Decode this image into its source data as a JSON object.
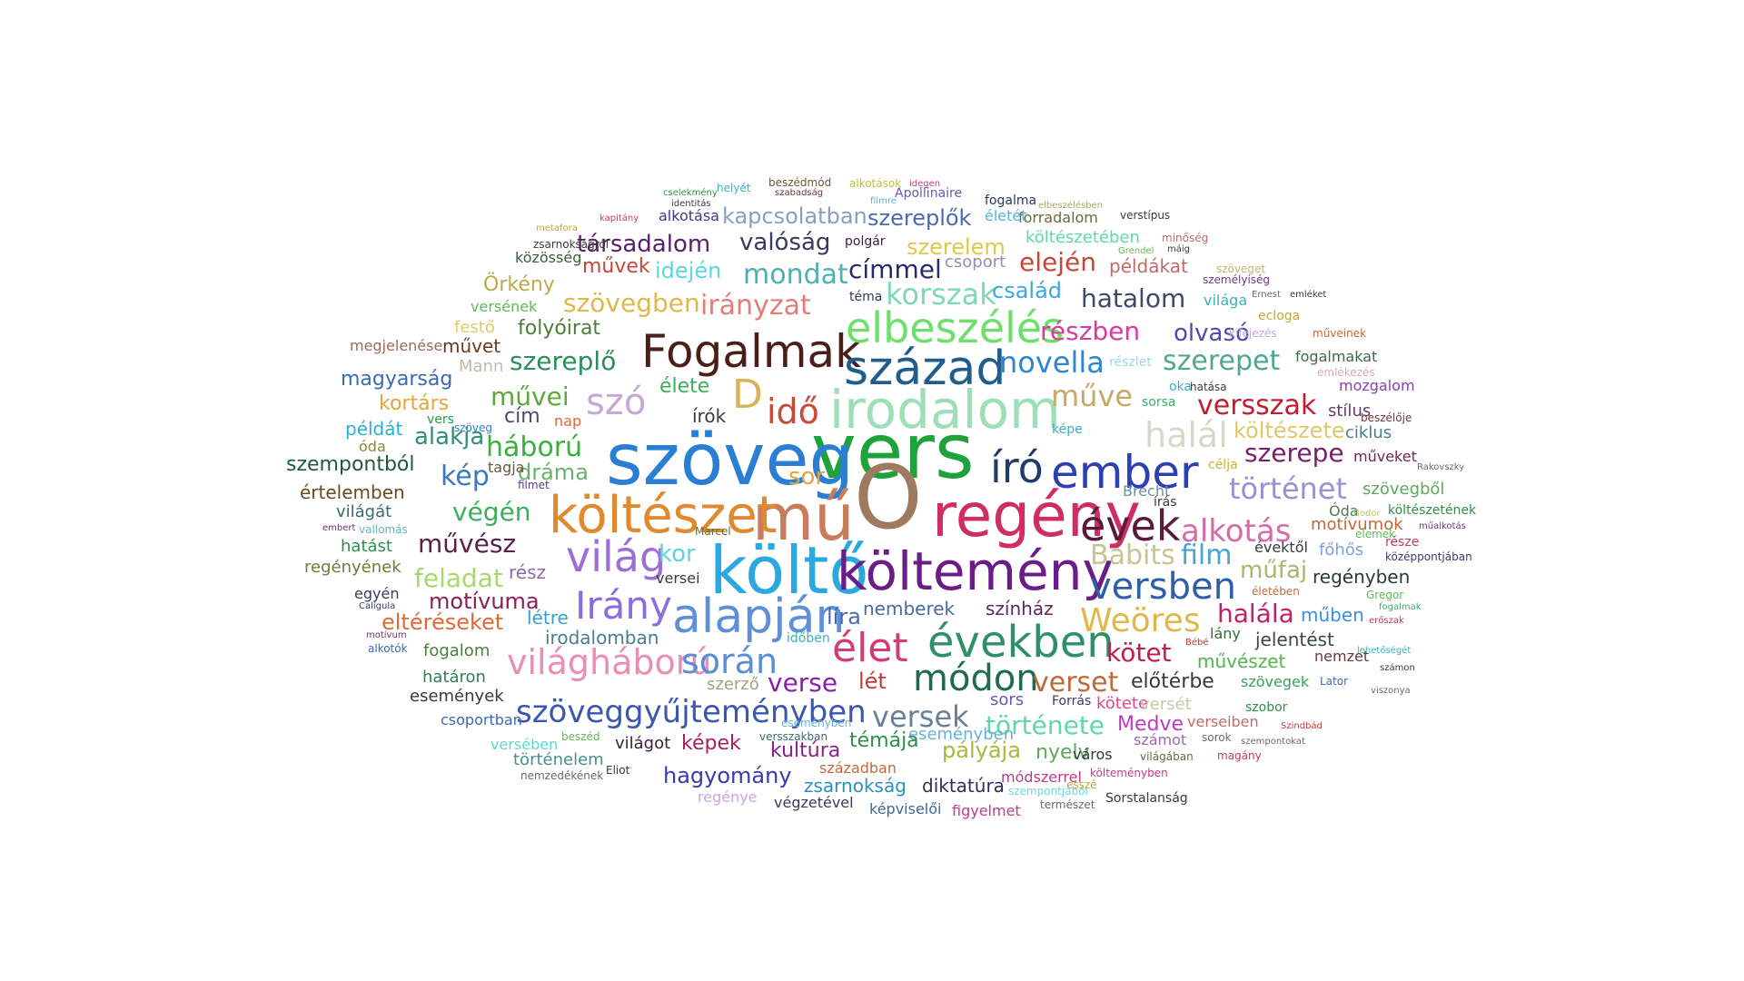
{
  "words": [
    {
      "text": "vers",
      "color": "#1fa23a"
    },
    {
      "text": "szöveg",
      "color": "#2a7fd4"
    },
    {
      "text": "O",
      "color": "#a07a5f"
    },
    {
      "text": "mű",
      "color": "#c97b5a"
    },
    {
      "text": "költő",
      "color": "#2aa8e0"
    },
    {
      "text": "regény",
      "color": "#cf2d63"
    },
    {
      "text": "költészet",
      "color": "#e0892f"
    },
    {
      "text": "költemény",
      "color": "#6a1d86"
    },
    {
      "text": "irodalom",
      "color": "#9de0b8"
    },
    {
      "text": "Fogalmak",
      "color": "#4a1f1a"
    },
    {
      "text": "század",
      "color": "#1f5d8e"
    },
    {
      "text": "elbeszélés",
      "color": "#6ee06a"
    },
    {
      "text": "ember",
      "color": "#2d3fb5"
    },
    {
      "text": "alapján",
      "color": "#5f8fd8"
    },
    {
      "text": "világ",
      "color": "#9b6ed8"
    },
    {
      "text": "évek",
      "color": "#5a1a3a"
    },
    {
      "text": "években",
      "color": "#2f8f6a"
    },
    {
      "text": "élet",
      "color": "#d43a78"
    },
    {
      "text": "író",
      "color": "#223a6a"
    },
    {
      "text": "Irány",
      "color": "#8a6ee0"
    },
    {
      "text": "módon",
      "color": "#1f6b4f"
    },
    {
      "text": "szó",
      "color": "#c6a8d8"
    },
    {
      "text": "idő",
      "color": "#c94a3a"
    },
    {
      "text": "D",
      "color": "#d8b25a"
    },
    {
      "text": "világháború",
      "color": "#e98fb5"
    },
    {
      "text": "során",
      "color": "#5a8fd8"
    },
    {
      "text": "szöveggyűjteményben",
      "color": "#3a58b0"
    },
    {
      "text": "versben",
      "color": "#2f5fa8"
    },
    {
      "text": "Weöres",
      "color": "#e0b84a"
    },
    {
      "text": "alkotás",
      "color": "#d86aa8"
    },
    {
      "text": "Babits",
      "color": "#c6c690"
    },
    {
      "text": "film",
      "color": "#4aa3d8"
    },
    {
      "text": "történet",
      "color": "#9a8fd8"
    },
    {
      "text": "halál",
      "color": "#d8d8c8"
    },
    {
      "text": "novella",
      "color": "#2f86d0"
    },
    {
      "text": "műve",
      "color": "#c6a86a"
    },
    {
      "text": "versszak",
      "color": "#c01f2f"
    },
    {
      "text": "szerepet",
      "color": "#4fa88f"
    },
    {
      "text": "részben",
      "color": "#d83a9f"
    },
    {
      "text": "hatalom",
      "color": "#3a4a6a"
    },
    {
      "text": "korszak",
      "color": "#7fd8b8"
    },
    {
      "text": "mondat",
      "color": "#4fb0b5"
    },
    {
      "text": "irányzat",
      "color": "#e07f7a"
    },
    {
      "text": "szövegben",
      "color": "#e0b84a"
    },
    {
      "text": "szereplő",
      "color": "#2a8f5a"
    },
    {
      "text": "művei",
      "color": "#5fa83a"
    },
    {
      "text": "háború",
      "color": "#3ab03a"
    },
    {
      "text": "kép",
      "color": "#3a78c0"
    },
    {
      "text": "végén",
      "color": "#3ab05a"
    },
    {
      "text": "művész",
      "color": "#5a1f4a"
    },
    {
      "text": "kor",
      "color": "#5ad8d8"
    },
    {
      "text": "feladat",
      "color": "#a8d86a"
    },
    {
      "text": "motívuma",
      "color": "#8a1f5a"
    },
    {
      "text": "eltéréseket",
      "color": "#e06a3a"
    },
    {
      "text": "alakja",
      "color": "#2f8f7a"
    },
    {
      "text": "dráma",
      "color": "#6ab06a"
    },
    {
      "text": "sor",
      "color": "#e0a83a"
    },
    {
      "text": "története",
      "color": "#5fd8a8"
    },
    {
      "text": "verset",
      "color": "#c06a3a"
    },
    {
      "text": "versek",
      "color": "#6a7f9a"
    },
    {
      "text": "verse",
      "color": "#8a1fa8"
    },
    {
      "text": "kötet",
      "color": "#c01f4a"
    },
    {
      "text": "halála",
      "color": "#c01f6a"
    },
    {
      "text": "műfaj",
      "color": "#a8b86a"
    },
    {
      "text": "költészete",
      "color": "#e0c86a"
    },
    {
      "text": "szerepe",
      "color": "#7a1f6a"
    },
    {
      "text": "olvasó",
      "color": "#4a4ab0"
    },
    {
      "text": "család",
      "color": "#3aa8d8"
    },
    {
      "text": "elején",
      "color": "#c04a3a"
    },
    {
      "text": "címmel",
      "color": "#2a2a6a"
    },
    {
      "text": "valóság",
      "color": "#3a3a5a"
    },
    {
      "text": "társadalom",
      "color": "#5a1f6a"
    },
    {
      "text": "kapcsolatban",
      "color": "#8a9fc0"
    },
    {
      "text": "szereplők",
      "color": "#4a6ab0"
    },
    {
      "text": "szerelem",
      "color": "#e0c84a"
    },
    {
      "text": "idején",
      "color": "#5ad8e0"
    },
    {
      "text": "művek",
      "color": "#c04a3a"
    },
    {
      "text": "Örkény",
      "color": "#c0a84a"
    },
    {
      "text": "folyóirat",
      "color": "#4a7f3a"
    },
    {
      "text": "magyarság",
      "color": "#3a6ab0"
    },
    {
      "text": "kortárs",
      "color": "#e0a83a"
    },
    {
      "text": "szempontból",
      "color": "#1f5a3a"
    },
    {
      "text": "értelemben",
      "color": "#6a4a1f"
    },
    {
      "text": "eseményben",
      "color": "#6ab0d8"
    },
    {
      "text": "hagyomány",
      "color": "#3a3ab0"
    },
    {
      "text": "kultúra",
      "color": "#8a1f8a"
    },
    {
      "text": "témája",
      "color": "#2f8f4a"
    },
    {
      "text": "pályája",
      "color": "#a8b83a"
    },
    {
      "text": "nyelv",
      "color": "#5fa85a"
    },
    {
      "text": "képek",
      "color": "#a81f5a"
    },
    {
      "text": "zsarnokság",
      "color": "#2a8fc0"
    },
    {
      "text": "diktatúra",
      "color": "#3a2a5a"
    },
    {
      "text": "Medve",
      "color": "#c03ac0"
    },
    {
      "text": "előtérbe",
      "color": "#3a3a3a"
    },
    {
      "text": "jelentést",
      "color": "#3a4a3a"
    },
    {
      "text": "regényben",
      "color": "#2a3a3a"
    },
    {
      "text": "műben",
      "color": "#3a8fe0"
    },
    {
      "text": "művészet",
      "color": "#5fb85a"
    },
    {
      "text": "nemberek",
      "color": "#4a6a9a"
    },
    {
      "text": "színház",
      "color": "#5a2a5a"
    },
    {
      "text": "lét",
      "color": "#c83a3a"
    },
    {
      "text": "líra",
      "color": "#4a6ab0"
    },
    {
      "text": "irodalomban",
      "color": "#4a7f8a"
    },
    {
      "text": "létre",
      "color": "#3a9fd8"
    },
    {
      "text": "rész",
      "color": "#8a6ab0"
    },
    {
      "text": "fogalom",
      "color": "#4a7f3a"
    },
    {
      "text": "határon",
      "color": "#2f7f5a"
    },
    {
      "text": "események",
      "color": "#3a3a3a"
    },
    {
      "text": "csoportban",
      "color": "#3a6ab0"
    },
    {
      "text": "versében",
      "color": "#5fd8c8"
    },
    {
      "text": "történelem",
      "color": "#4a8f8a"
    },
    {
      "text": "világot",
      "color": "#3a1f3a"
    },
    {
      "text": "sors",
      "color": "#6a5ab0"
    },
    {
      "text": "szerző",
      "color": "#a89f7a"
    },
    {
      "text": "hatást",
      "color": "#2f8f4a"
    },
    {
      "text": "regényének",
      "color": "#6a7f3a"
    },
    {
      "text": "világát",
      "color": "#3a6a6a"
    },
    {
      "text": "példát",
      "color": "#2ab0d8"
    },
    {
      "text": "egyén",
      "color": "#3a3a5a"
    },
    {
      "text": "óda",
      "color": "#8a8a3a"
    },
    {
      "text": "Mann",
      "color": "#c8b8a8"
    },
    {
      "text": "művet",
      "color": "#6a3a1f"
    },
    {
      "text": "megjelenése",
      "color": "#9a6a5a"
    },
    {
      "text": "festő",
      "color": "#e0c86a"
    },
    {
      "text": "versének",
      "color": "#5fb85a"
    },
    {
      "text": "közösség",
      "color": "#3a5a3a"
    },
    {
      "text": "cím",
      "color": "#4a4a6a"
    },
    {
      "text": "nap",
      "color": "#e06a3a"
    },
    {
      "text": "élete",
      "color": "#3ab05a"
    },
    {
      "text": "írók",
      "color": "#3a3a3a"
    },
    {
      "text": "tagja",
      "color": "#6a5a3a"
    },
    {
      "text": "Brecht",
      "color": "#6a8fa8"
    },
    {
      "text": "Óda",
      "color": "#4a7f4a"
    },
    {
      "text": "motívumok",
      "color": "#c06a3a"
    },
    {
      "text": "évektől",
      "color": "#3a3a3a"
    },
    {
      "text": "főhős",
      "color": "#7f9fd8"
    },
    {
      "text": "szövegből",
      "color": "#5fa85a"
    },
    {
      "text": "művészet",
      "color": "#5fb85a"
    },
    {
      "text": "stílus",
      "color": "#6a3a6a"
    },
    {
      "text": "ciklus",
      "color": "#4a7f8a"
    },
    {
      "text": "műveket",
      "color": "#7a1f5a"
    },
    {
      "text": "fogalmakat",
      "color": "#3a6a4a"
    },
    {
      "text": "mozgalom",
      "color": "#8a3ac0"
    },
    {
      "text": "példákat",
      "color": "#c06a6a"
    },
    {
      "text": "költészetében",
      "color": "#5fd8a8"
    },
    {
      "text": "forradalom",
      "color": "#6a6a3a"
    },
    {
      "text": "csoport",
      "color": "#9a8fa8"
    },
    {
      "text": "világa",
      "color": "#3ab0c0"
    },
    {
      "text": "Apollinaire",
      "color": "#6a5ab0"
    },
    {
      "text": "alkotása",
      "color": "#3a3a8a"
    },
    {
      "text": "polgár",
      "color": "#3a1f3a"
    },
    {
      "text": "életét",
      "color": "#5ab0d8"
    },
    {
      "text": "fogalma",
      "color": "#2a3a5a"
    },
    {
      "text": "téma",
      "color": "#2a3a5a"
    },
    {
      "text": "ecloga",
      "color": "#c0a83a"
    },
    {
      "text": "versei",
      "color": "#3a3a3a"
    },
    {
      "text": "lány",
      "color": "#3a6a3a"
    },
    {
      "text": "nemzet",
      "color": "#6a3a3a"
    },
    {
      "text": "szövegek",
      "color": "#3a9f5a"
    },
    {
      "text": "szobor",
      "color": "#2f8f4a"
    },
    {
      "text": "Forrás",
      "color": "#3a3a5a"
    },
    {
      "text": "kötete",
      "color": "#d84a8a"
    },
    {
      "text": "versét",
      "color": "#c8c8a8"
    },
    {
      "text": "verseiben",
      "color": "#c06a6a"
    },
    {
      "text": "számot",
      "color": "#9a6ab0"
    },
    {
      "text": "város",
      "color": "#2a3a3a"
    },
    {
      "text": "században",
      "color": "#c06a3a"
    },
    {
      "text": "módszerrel",
      "color": "#c03a8a"
    },
    {
      "text": "képviselői",
      "color": "#3a6a9a"
    },
    {
      "text": "figyelmet",
      "color": "#c03a8a"
    },
    {
      "text": "végzetével",
      "color": "#3a3a5a"
    },
    {
      "text": "regénye",
      "color": "#c8a8d8"
    },
    {
      "text": "Sorstalanság",
      "color": "#3a3a3a"
    },
    {
      "text": "természet",
      "color": "#6a6a6a"
    },
    {
      "text": "szempontjából",
      "color": "#6ad8e0"
    },
    {
      "text": "költeményben",
      "color": "#c03a8a"
    },
    {
      "text": "világában",
      "color": "#6a6a3a"
    },
    {
      "text": "Eliot",
      "color": "#3a3a3a"
    },
    {
      "text": "nemzedékének",
      "color": "#6a6a6a"
    },
    {
      "text": "eseményben",
      "color": "#6ab0d8"
    },
    {
      "text": "versszakban",
      "color": "#3a6a6a"
    },
    {
      "text": "beszéd",
      "color": "#5fb85a"
    },
    {
      "text": "időben",
      "color": "#3ab0c0"
    },
    {
      "text": "Marcel",
      "color": "#6a6a3a"
    },
    {
      "text": "alkotók",
      "color": "#3a6ab0"
    },
    {
      "text": "motívum",
      "color": "#6a3a6a"
    },
    {
      "text": "Calígula",
      "color": "#3a3a6a"
    },
    {
      "text": "vallomás",
      "color": "#5fb8c0"
    },
    {
      "text": "embert",
      "color": "#6a3a6a"
    },
    {
      "text": "filmet",
      "color": "#5a3a8a"
    },
    {
      "text": "zsarnokságról",
      "color": "#3a3a3a"
    },
    {
      "text": "kapitány",
      "color": "#c03a6a"
    },
    {
      "text": "metafora",
      "color": "#c0a83a"
    },
    {
      "text": "identitás",
      "color": "#3a3a3a"
    },
    {
      "text": "cselekmény",
      "color": "#2f8f4a"
    },
    {
      "text": "helyét",
      "color": "#3ab0c0"
    },
    {
      "text": "beszédmód",
      "color": "#6a5a3a"
    },
    {
      "text": "szabadság",
      "color": "#6a3a3a"
    },
    {
      "text": "alkotások",
      "color": "#c0c03a"
    },
    {
      "text": "idegen",
      "color": "#c03a8a"
    },
    {
      "text": "filmre",
      "color": "#5ab0d8"
    },
    {
      "text": "elbeszélésben",
      "color": "#a8a86a"
    },
    {
      "text": "verstípus",
      "color": "#3a3a3a"
    },
    {
      "text": "minőség",
      "color": "#c06a6a"
    },
    {
      "text": "Grendel",
      "color": "#5fb85a"
    },
    {
      "text": "máig",
      "color": "#3a3a3a"
    },
    {
      "text": "szöveget",
      "color": "#c0b86a"
    },
    {
      "text": "személyiség",
      "color": "#6a3a8a"
    },
    {
      "text": "Ernest",
      "color": "#6a6a6a"
    },
    {
      "text": "emléket",
      "color": "#3a3a3a"
    },
    {
      "text": "kifejezés",
      "color": "#c8a8d8"
    },
    {
      "text": "műveinek",
      "color": "#c06a3a"
    },
    {
      "text": "emlékezés",
      "color": "#d8a8c0"
    },
    {
      "text": "beszélője",
      "color": "#6a3a3a"
    },
    {
      "text": "hatása",
      "color": "#3a3a3a"
    },
    {
      "text": "sorsa",
      "color": "#3ab06a"
    },
    {
      "text": "oka",
      "color": "#3ab0c0"
    },
    {
      "text": "részlet",
      "color": "#9ad8e0"
    },
    {
      "text": "képe",
      "color": "#3ab0c0"
    },
    {
      "text": "része",
      "color": "#c03a6a"
    },
    {
      "text": "célja",
      "color": "#c0b83a"
    },
    {
      "text": "írás",
      "color": "#3a3a3a"
    },
    {
      "text": "költészetének",
      "color": "#2f8f4a"
    },
    {
      "text": "elemek",
      "color": "#5fb85a"
    },
    {
      "text": "középpontjában",
      "color": "#3a3a6a"
    },
    {
      "text": "Bodor",
      "color": "#c0c06a"
    },
    {
      "text": "műalkotás",
      "color": "#6a3a6a"
    },
    {
      "text": "Rakovszky",
      "color": "#6a6a6a"
    },
    {
      "text": "életében",
      "color": "#c06a3a"
    },
    {
      "text": "Gregor",
      "color": "#5fb85a"
    },
    {
      "text": "fogalmak",
      "color": "#3ab06a"
    },
    {
      "text": "erőszak",
      "color": "#c03a6a"
    },
    {
      "text": "lehetőségét",
      "color": "#3ab0c0"
    },
    {
      "text": "számon",
      "color": "#3a3a3a"
    },
    {
      "text": "viszonya",
      "color": "#6a6a6a"
    },
    {
      "text": "Lator",
      "color": "#3a6ab0"
    },
    {
      "text": "Szindbád",
      "color": "#c03a3a"
    },
    {
      "text": "szempontokat",
      "color": "#6a6a6a"
    },
    {
      "text": "sorok",
      "color": "#6a6a6a"
    },
    {
      "text": "magány",
      "color": "#c03a6a"
    },
    {
      "text": "Bébé",
      "color": "#c03a3a"
    },
    {
      "text": "esszé",
      "color": "#c0a83a"
    },
    {
      "text": "vers",
      "color": "#1fa23a"
    },
    {
      "text": "szöveg",
      "color": "#2a7fd4"
    }
  ]
}
